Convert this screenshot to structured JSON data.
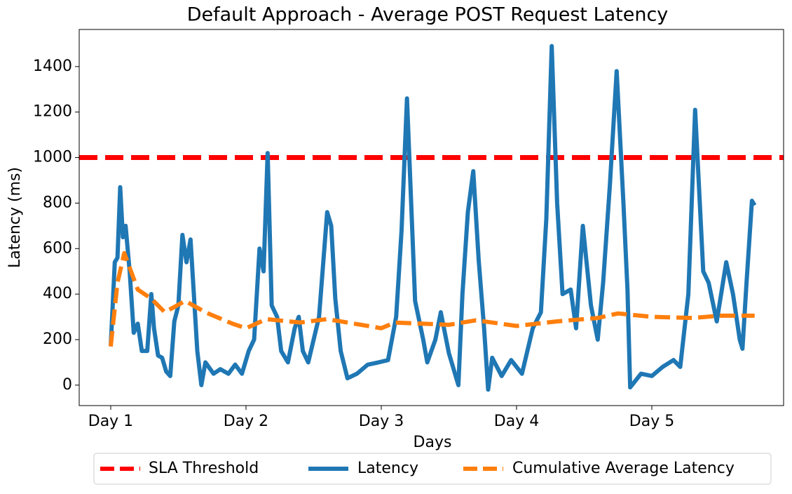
{
  "chart_data": {
    "type": "line",
    "title": "Default Approach - Average POST Request Latency",
    "x_label": "Days",
    "y_label": "Latency (ms)",
    "xlim": [
      0.767,
      5.974
    ],
    "ylim": [
      -90,
      1563
    ],
    "xticks": [
      {
        "value": 1,
        "label": "Day 1"
      },
      {
        "value": 2,
        "label": "Day 2"
      },
      {
        "value": 3,
        "label": "Day 3"
      },
      {
        "value": 4,
        "label": "Day 4"
      },
      {
        "value": 5,
        "label": "Day 5"
      }
    ],
    "yticks": [
      0,
      200,
      400,
      600,
      800,
      1000,
      1200,
      1400
    ],
    "threshold": {
      "name": "SLA Threshold",
      "value": 1000,
      "color": "#ff0000"
    },
    "series": [
      {
        "name": "Latency",
        "color": "#1f77b4",
        "dashed": false,
        "x": [
          1.0,
          1.03,
          1.05,
          1.07,
          1.09,
          1.11,
          1.14,
          1.17,
          1.2,
          1.23,
          1.27,
          1.3,
          1.32,
          1.35,
          1.38,
          1.41,
          1.44,
          1.47,
          1.5,
          1.53,
          1.56,
          1.59,
          1.64,
          1.67,
          1.7,
          1.76,
          1.81,
          1.87,
          1.92,
          1.97,
          2.02,
          2.06,
          2.1,
          2.13,
          2.16,
          2.19,
          2.23,
          2.26,
          2.31,
          2.36,
          2.39,
          2.42,
          2.46,
          2.54,
          2.6,
          2.63,
          2.66,
          2.7,
          2.75,
          2.82,
          2.9,
          2.98,
          3.05,
          3.11,
          3.15,
          3.19,
          3.25,
          3.31,
          3.34,
          3.4,
          3.44,
          3.5,
          3.57,
          3.6,
          3.64,
          3.68,
          3.72,
          3.76,
          3.79,
          3.82,
          3.89,
          3.96,
          4.04,
          4.12,
          4.18,
          4.22,
          4.26,
          4.3,
          4.34,
          4.4,
          4.44,
          4.49,
          4.55,
          4.6,
          4.64,
          4.69,
          4.74,
          4.79,
          4.82,
          4.84,
          4.92,
          5.0,
          5.08,
          5.16,
          5.21,
          5.27,
          5.32,
          5.38,
          5.42,
          5.48,
          5.55,
          5.6,
          5.65,
          5.67,
          5.7,
          5.74,
          5.76
        ],
        "values": [
          170,
          540,
          560,
          870,
          650,
          700,
          500,
          230,
          270,
          150,
          150,
          400,
          250,
          130,
          120,
          60,
          40,
          280,
          350,
          660,
          540,
          640,
          150,
          0,
          100,
          50,
          70,
          50,
          90,
          50,
          150,
          200,
          600,
          500,
          1020,
          350,
          300,
          150,
          100,
          250,
          300,
          150,
          100,
          300,
          760,
          700,
          380,
          150,
          30,
          50,
          90,
          100,
          110,
          300,
          680,
          1260,
          370,
          200,
          100,
          200,
          320,
          140,
          0,
          400,
          760,
          940,
          550,
          250,
          -20,
          120,
          40,
          110,
          50,
          250,
          320,
          730,
          1490,
          800,
          400,
          420,
          250,
          700,
          350,
          200,
          450,
          880,
          1380,
          800,
          420,
          -10,
          50,
          40,
          80,
          110,
          80,
          400,
          1210,
          500,
          450,
          280,
          540,
          400,
          200,
          160,
          450,
          810,
          790
        ]
      },
      {
        "name": "Cumulative Average Latency",
        "color": "#ff7f0e",
        "dashed": true,
        "x": [
          1.0,
          1.05,
          1.1,
          1.2,
          1.3,
          1.4,
          1.55,
          1.7,
          1.9,
          2.0,
          2.15,
          2.4,
          2.6,
          2.8,
          3.0,
          3.1,
          3.5,
          3.7,
          4.0,
          4.15,
          4.3,
          4.6,
          4.75,
          5.0,
          5.3,
          5.5,
          5.76
        ],
        "values": [
          170,
          450,
          580,
          420,
          380,
          320,
          370,
          320,
          270,
          250,
          290,
          275,
          290,
          270,
          250,
          275,
          265,
          285,
          260,
          270,
          280,
          295,
          315,
          300,
          295,
          305,
          305
        ]
      }
    ]
  }
}
